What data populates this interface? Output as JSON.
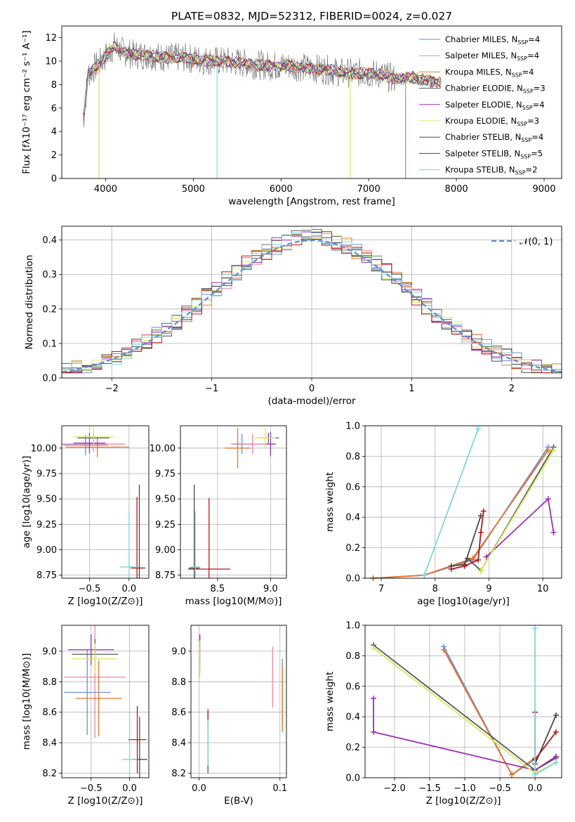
{
  "figure_title": "PLATE=0832, MJD=52312, FIBERID=0024, z=0.027",
  "colors": {
    "Chabrier MILES": "#6a8fd8",
    "Salpeter MILES": "#ef86a4",
    "Kroupa MILES": "#e0782a",
    "Chabrier ELODIE": "#5a5a5a",
    "Salpeter ELODIE": "#9b2fb5",
    "Kroupa ELODIE": "#d8e85a",
    "Chabrier STELIB": "#4a4a4a",
    "Salpeter STELIB": "#b51818",
    "Kroupa STELIB": "#7fd8dc",
    "data": "#808080"
  },
  "chart_data": [
    {
      "id": "spectrum",
      "type": "line",
      "title": "PLATE=0832, MJD=52312, FIBERID=0024, z=0.027",
      "xlabel": "wavelength [Angstrom, rest frame]",
      "ylabel": "Flux [fλ10⁻¹⁷ erg cm⁻² s⁻¹ A⁻¹]",
      "xlim": [
        3500,
        9200
      ],
      "ylim": [
        0,
        13
      ],
      "xticks": [
        4000,
        5000,
        6000,
        7000,
        8000,
        9000
      ],
      "yticks": [
        0,
        2,
        4,
        6,
        8,
        10,
        12
      ],
      "grid": false,
      "legend_position": "top-right",
      "continuum_x": [
        3750,
        3800,
        3900,
        4000,
        4100,
        4200,
        4300,
        4500,
        4700,
        4900,
        5100,
        5300,
        5500,
        5700,
        5900,
        6100,
        6300,
        6500,
        6700,
        6900,
        7100,
        7300,
        7500,
        7600,
        7700,
        7800
      ],
      "continuum_y": [
        5.2,
        8.9,
        9.6,
        10.4,
        11.3,
        10.8,
        10.6,
        10.5,
        10.3,
        10.3,
        10.1,
        10.0,
        9.9,
        9.7,
        9.6,
        9.6,
        9.4,
        9.3,
        9.0,
        9.0,
        8.9,
        8.5,
        8.6,
        8.4,
        8.3,
        8.2
      ],
      "legend": [
        {
          "label": "Chabrier MILES",
          "nssp": "4"
        },
        {
          "label": "Salpeter MILES",
          "nssp": "4"
        },
        {
          "label": "Kroupa MILES",
          "nssp": "4"
        },
        {
          "label": "Chabrier ELODIE",
          "nssp": "3"
        },
        {
          "label": "Salpeter ELODIE",
          "nssp": "4"
        },
        {
          "label": "Kroupa ELODIE",
          "nssp": "3"
        },
        {
          "label": "Chabrier STELIB",
          "nssp": "4"
        },
        {
          "label": "Salpeter STELIB",
          "nssp": "5"
        },
        {
          "label": "Kroupa STELIB",
          "nssp": "2"
        }
      ]
    },
    {
      "id": "residuals",
      "type": "histogram",
      "xlabel": "(data-model)/error",
      "ylabel": "Normed distribution",
      "xlim": [
        -2.5,
        2.5
      ],
      "ylim": [
        0,
        0.44
      ],
      "xticks": [
        -2,
        -1,
        0,
        1,
        2
      ],
      "yticks": [
        0.0,
        0.1,
        0.2,
        0.3,
        0.4
      ],
      "grid": true,
      "legend_position": "top-right",
      "reference_label": "𝒩(0, 1)",
      "bin_width": 0.1,
      "series_approx": "histograms of all nine fits scatter around a unit normal, values 0.02-0.42"
    },
    {
      "id": "age_vs_Z",
      "type": "errorbar",
      "xlabel": "Z [log10(Z/Z⊙)]",
      "ylabel": "age  [log10(age/yr)]",
      "xlim": [
        -0.85,
        0.25
      ],
      "ylim": [
        8.72,
        10.22
      ],
      "xticks": [
        -0.5,
        0.0
      ],
      "yticks": [
        8.75,
        9.0,
        9.25,
        9.5,
        9.75,
        10.0
      ],
      "grid": true,
      "points": [
        {
          "series": "Chabrier MILES",
          "x": -0.55,
          "y": 10.03,
          "xerr": 0.28,
          "yerr": 0.1
        },
        {
          "series": "Salpeter MILES",
          "x": -0.45,
          "y": 10.04,
          "xerr": 0.4,
          "yerr": 0.08
        },
        {
          "series": "Kroupa MILES",
          "x": -0.4,
          "y": 10.01,
          "xerr": 0.4,
          "yerr": 0.1
        },
        {
          "series": "Chabrier ELODIE",
          "x": -0.45,
          "y": 10.1,
          "xerr": 0.2,
          "yerr": 0.05
        },
        {
          "series": "Salpeter ELODIE",
          "x": -0.5,
          "y": 10.05,
          "xerr": 0.2,
          "yerr": 0.1
        },
        {
          "series": "Kroupa ELODIE",
          "x": -0.45,
          "y": 10.11,
          "xerr": 0.25,
          "yerr": 0.1
        },
        {
          "series": "Chabrier STELIB",
          "x": 0.13,
          "y": 8.82,
          "xerr": 0.08,
          "yerr": 0.82
        },
        {
          "series": "Salpeter STELIB",
          "x": 0.1,
          "y": 8.82,
          "xerr": 0.08,
          "yerr": 0.7
        },
        {
          "series": "Kroupa STELIB",
          "x": 0.0,
          "y": 8.83,
          "xerr": 0.12,
          "yerr": 0.55
        }
      ]
    },
    {
      "id": "age_vs_mass",
      "type": "errorbar",
      "xlabel": "mass [log10(M/M⊙)]",
      "ylabel": "",
      "xlim": [
        8.15,
        9.15
      ],
      "ylim": [
        8.72,
        10.22
      ],
      "xticks": [
        8.5,
        9.0
      ],
      "yticks": [
        8.75,
        9.0,
        9.25,
        9.5,
        9.75,
        10.0
      ],
      "grid": true,
      "points": [
        {
          "series": "Chabrier MILES",
          "x": 8.73,
          "y": 10.04,
          "xerr": 0.1,
          "yerr": 0.1
        },
        {
          "series": "Salpeter MILES",
          "x": 8.83,
          "y": 10.04,
          "xerr": 0.2,
          "yerr": 0.1
        },
        {
          "series": "Kroupa MILES",
          "x": 8.69,
          "y": 10.0,
          "xerr": 0.12,
          "yerr": 0.2
        },
        {
          "series": "Chabrier ELODIE",
          "x": 8.98,
          "y": 10.1,
          "xerr": 0.1,
          "yerr": 0.05
        },
        {
          "series": "Salpeter ELODIE",
          "x": 9.0,
          "y": 10.04,
          "xerr": 0.05,
          "yerr": 0.12
        },
        {
          "series": "Kroupa ELODIE",
          "x": 8.95,
          "y": 10.1,
          "xerr": 0.1,
          "yerr": 0.1
        },
        {
          "series": "Chabrier STELIB",
          "x": 8.28,
          "y": 8.82,
          "xerr": 0.05,
          "yerr": 0.82
        },
        {
          "series": "Salpeter STELIB",
          "x": 8.42,
          "y": 8.81,
          "xerr": 0.2,
          "yerr": 0.7
        },
        {
          "series": "Kroupa STELIB",
          "x": 8.29,
          "y": 8.83,
          "xerr": 0.05,
          "yerr": 0.55
        }
      ]
    },
    {
      "id": "massweight_vs_age",
      "type": "line",
      "xlabel": "age  [log10(age/yr)]",
      "ylabel": "mass weight",
      "xlim": [
        6.7,
        10.35
      ],
      "ylim": [
        0,
        1
      ],
      "xticks": [
        7,
        8,
        9,
        10
      ],
      "yticks": [
        0.0,
        0.2,
        0.4,
        0.6,
        0.8,
        1.0
      ],
      "grid": true,
      "series": [
        {
          "name": "Chabrier MILES",
          "x": [
            6.85,
            7.8,
            8.7,
            10.1
          ],
          "y": [
            0.0,
            0.02,
            0.12,
            0.86
          ]
        },
        {
          "name": "Salpeter MILES",
          "x": [
            6.85,
            7.8,
            8.7,
            10.1
          ],
          "y": [
            0.0,
            0.02,
            0.13,
            0.84
          ]
        },
        {
          "name": "Kroupa MILES",
          "x": [
            6.85,
            7.8,
            8.7,
            10.1
          ],
          "y": [
            0.0,
            0.02,
            0.13,
            0.84
          ]
        },
        {
          "name": "Chabrier ELODIE",
          "x": [
            8.6,
            8.85,
            10.2
          ],
          "y": [
            0.13,
            0.05,
            0.86
          ]
        },
        {
          "name": "Salpeter ELODIE",
          "x": [
            8.95,
            10.1,
            10.2
          ],
          "y": [
            0.14,
            0.52,
            0.3
          ]
        },
        {
          "name": "Kroupa ELODIE",
          "x": [
            8.85,
            10.2
          ],
          "y": [
            0.05,
            0.84
          ]
        },
        {
          "name": "Chabrier STELIB",
          "x": [
            8.3,
            8.55,
            8.85
          ],
          "y": [
            0.08,
            0.09,
            0.41
          ]
        },
        {
          "name": "Salpeter STELIB",
          "x": [
            8.3,
            8.55,
            8.8,
            8.85,
            8.9
          ],
          "y": [
            0.06,
            0.08,
            0.12,
            0.3,
            0.44
          ]
        },
        {
          "name": "Kroupa STELIB",
          "x": [
            7.8,
            8.8
          ],
          "y": [
            0.02,
            0.98
          ]
        }
      ]
    },
    {
      "id": "mass_vs_Z",
      "type": "errorbar",
      "xlabel": "Z [log10(Z/Z⊙)]",
      "ylabel": "mass [log10(M/M⊙)]",
      "xlim": [
        -0.88,
        0.25
      ],
      "ylim": [
        8.17,
        9.17
      ],
      "xticks": [
        -0.5,
        0.0
      ],
      "yticks": [
        8.2,
        8.4,
        8.6,
        8.8,
        9.0
      ],
      "grid": true,
      "points": [
        {
          "series": "Chabrier MILES",
          "x": -0.55,
          "y": 8.73,
          "xerr": 0.3,
          "yerr": 0.28
        },
        {
          "series": "Salpeter MILES",
          "x": -0.45,
          "y": 8.83,
          "xerr": 0.4,
          "yerr": 0.4
        },
        {
          "series": "Kroupa MILES",
          "x": -0.4,
          "y": 8.69,
          "xerr": 0.3,
          "yerr": 0.25
        },
        {
          "series": "Chabrier ELODIE",
          "x": -0.45,
          "y": 8.98,
          "xerr": 0.3,
          "yerr": 0.1
        },
        {
          "series": "Salpeter ELODIE",
          "x": -0.5,
          "y": 9.01,
          "xerr": 0.3,
          "yerr": 0.1
        },
        {
          "series": "Kroupa ELODIE",
          "x": -0.45,
          "y": 8.95,
          "xerr": 0.3,
          "yerr": 0.1
        },
        {
          "series": "Chabrier STELIB",
          "x": 0.13,
          "y": 8.29,
          "xerr": 0.1,
          "yerr": 0.28
        },
        {
          "series": "Salpeter STELIB",
          "x": 0.1,
          "y": 8.42,
          "xerr": 0.12,
          "yerr": 0.22
        },
        {
          "series": "Kroupa STELIB",
          "x": 0.0,
          "y": 8.29,
          "xerr": 0.1,
          "yerr": 0.3
        }
      ]
    },
    {
      "id": "mass_vs_EBV",
      "type": "errorbar",
      "xlabel": "E(B-V)",
      "ylabel": "",
      "xlim": [
        -0.01,
        0.108
      ],
      "ylim": [
        8.17,
        9.17
      ],
      "xticks": [
        0.0,
        0.1
      ],
      "yticks": [
        8.2,
        8.4,
        8.6,
        8.8,
        9.0
      ],
      "grid": true,
      "points": [
        {
          "series": "Chabrier MILES",
          "x": 0.103,
          "y": 8.73,
          "xerr": 0.0,
          "yerr": 0.22
        },
        {
          "series": "Salpeter MILES",
          "x": 0.091,
          "y": 8.83,
          "xerr": 0.0,
          "yerr": 0.2
        },
        {
          "series": "Kroupa MILES",
          "x": 0.103,
          "y": 8.69,
          "xerr": 0.0,
          "yerr": 0.22
        },
        {
          "series": "Chabrier ELODIE",
          "x": 0.001,
          "y": 8.98,
          "xerr": 0.0,
          "yerr": 0.1
        },
        {
          "series": "Salpeter ELODIE",
          "x": 0.001,
          "y": 9.03,
          "xerr": 0.0,
          "yerr": 0.08
        },
        {
          "series": "Kroupa ELODIE",
          "x": 0.001,
          "y": 8.95,
          "xerr": 0.0,
          "yerr": 0.12
        },
        {
          "series": "Chabrier STELIB",
          "x": 0.011,
          "y": 8.4,
          "xerr": 0.0,
          "yerr": 0.2
        },
        {
          "series": "Salpeter STELIB",
          "x": 0.011,
          "y": 8.58,
          "xerr": 0.0,
          "yerr": 0.04
        },
        {
          "series": "Kroupa STELIB",
          "x": 0.011,
          "y": 8.4,
          "xerr": 0.0,
          "yerr": 0.15
        }
      ]
    },
    {
      "id": "massweight_vs_Z",
      "type": "line",
      "xlabel": "Z [log10(Z/Z⊙)]",
      "ylabel": "mass weight",
      "xlim": [
        -2.42,
        0.38
      ],
      "ylim": [
        0,
        1
      ],
      "xticks": [
        -2.0,
        -1.5,
        -1.0,
        -0.5,
        0.0
      ],
      "yticks": [
        0.0,
        0.2,
        0.4,
        0.6,
        0.8,
        1.0
      ],
      "grid": true,
      "series": [
        {
          "name": "Chabrier MILES",
          "x": [
            -1.3,
            -0.33,
            0.0
          ],
          "y": [
            0.86,
            0.02,
            0.12
          ]
        },
        {
          "name": "Salpeter MILES",
          "x": [
            -1.3,
            -0.33,
            0.0
          ],
          "y": [
            0.84,
            0.02,
            0.13
          ]
        },
        {
          "name": "Kroupa MILES",
          "x": [
            -1.3,
            -0.33,
            0.0
          ],
          "y": [
            0.84,
            0.02,
            0.13
          ]
        },
        {
          "name": "Chabrier ELODIE",
          "x": [
            -2.3,
            0.0,
            0.3
          ],
          "y": [
            0.87,
            0.05,
            0.13
          ]
        },
        {
          "name": "Salpeter ELODIE",
          "x": [
            -2.3,
            -2.3,
            0.0,
            0.3
          ],
          "y": [
            0.52,
            0.3,
            0.05,
            0.14
          ]
        },
        {
          "name": "Kroupa ELODIE",
          "x": [
            -2.3,
            0.0,
            0.3
          ],
          "y": [
            0.85,
            0.03,
            0.1
          ]
        },
        {
          "name": "Chabrier STELIB",
          "x": [
            0.0,
            0.0,
            0.3
          ],
          "y": [
            0.43,
            0.09,
            0.41
          ]
        },
        {
          "name": "Salpeter STELIB",
          "x": [
            0.0,
            0.0,
            0.3
          ],
          "y": [
            0.43,
            0.12,
            0.3
          ]
        },
        {
          "name": "Kroupa STELIB",
          "x": [
            0.0,
            0.0,
            0.3
          ],
          "y": [
            0.98,
            0.02,
            0.1
          ]
        }
      ]
    }
  ]
}
